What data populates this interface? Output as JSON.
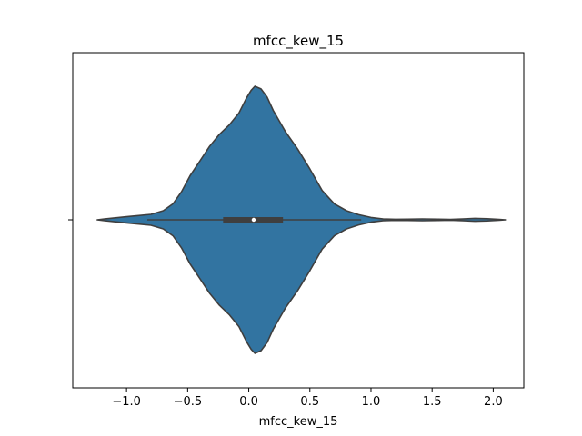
{
  "chart_data": {
    "type": "violin",
    "title": "mfcc_kew_15",
    "xlabel": "mfcc_kew_15",
    "ylabel": "",
    "xlim": [
      -1.44,
      2.25
    ],
    "xticks": [
      -1.0,
      -0.5,
      0.0,
      0.5,
      1.0,
      1.5,
      2.0
    ],
    "xtick_labels": [
      "−1.0",
      "−0.5",
      "0.0",
      "0.5",
      "1.0",
      "1.5",
      "2.0"
    ],
    "grid": false,
    "fill_color": "#3274a1",
    "edge_color": "#3f3f3f",
    "box_color": "#3f3f3f",
    "median_color": "#ffffff",
    "density": [
      [
        -1.24,
        0.0
      ],
      [
        -1.18,
        0.006
      ],
      [
        -1.1,
        0.014
      ],
      [
        -1.0,
        0.023
      ],
      [
        -0.9,
        0.032
      ],
      [
        -0.8,
        0.041
      ],
      [
        -0.7,
        0.068
      ],
      [
        -0.62,
        0.12
      ],
      [
        -0.55,
        0.21
      ],
      [
        -0.48,
        0.33
      ],
      [
        -0.4,
        0.44
      ],
      [
        -0.32,
        0.55
      ],
      [
        -0.24,
        0.64
      ],
      [
        -0.16,
        0.71
      ],
      [
        -0.08,
        0.8
      ],
      [
        -0.02,
        0.91
      ],
      [
        0.02,
        0.97
      ],
      [
        0.05,
        1.0
      ],
      [
        0.1,
        0.98
      ],
      [
        0.15,
        0.92
      ],
      [
        0.2,
        0.82
      ],
      [
        0.3,
        0.66
      ],
      [
        0.4,
        0.53
      ],
      [
        0.5,
        0.38
      ],
      [
        0.6,
        0.22
      ],
      [
        0.7,
        0.12
      ],
      [
        0.8,
        0.068
      ],
      [
        0.9,
        0.038
      ],
      [
        1.0,
        0.018
      ],
      [
        1.1,
        0.006
      ],
      [
        1.2,
        0.004
      ],
      [
        1.3,
        0.005
      ],
      [
        1.42,
        0.007
      ],
      [
        1.55,
        0.005
      ],
      [
        1.65,
        0.003
      ],
      [
        1.75,
        0.006
      ],
      [
        1.85,
        0.011
      ],
      [
        1.95,
        0.008
      ],
      [
        2.05,
        0.003
      ],
      [
        2.1,
        0.0
      ]
    ],
    "box": {
      "q1": -0.21,
      "median": 0.04,
      "q3": 0.28,
      "whisker_low": -0.83,
      "whisker_high": 0.92
    }
  }
}
